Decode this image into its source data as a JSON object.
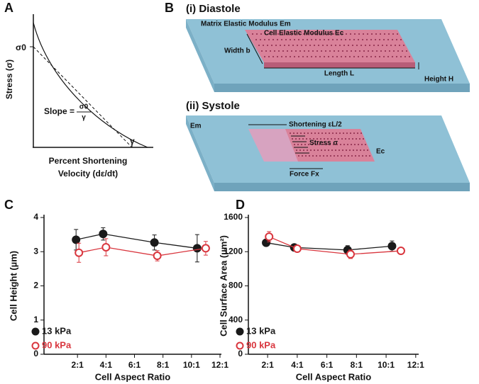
{
  "panel_a": {
    "letter": "A",
    "y_axis_label": "Stress (σ)",
    "sigma0": "σ0",
    "gamma": "γ",
    "slope_label": "Slope =",
    "slope_num": "σ0",
    "slope_den": "γ",
    "x_axis_line1": "Percent Shortening",
    "x_axis_line2": "Velocity (dε/dt)"
  },
  "panel_b": {
    "letter": "B",
    "diastole": {
      "title": "(i) Diastole",
      "matrix": "Matrix Elastic Modulus Em",
      "cell": "Cell Elastic Modulus Ec",
      "width": "Width b",
      "height": "Height H",
      "length": "Length L"
    },
    "systole": {
      "title": "(ii) Systole",
      "matrix": "Em",
      "shortening": "Shortening εL/2",
      "stress": "Stress σ",
      "cell": "Ec",
      "force": "Force Fx"
    }
  },
  "chart_data": [
    {
      "type": "line",
      "letter": "C",
      "x_label": "Cell Aspect Ratio",
      "y_label": "Cell Height (µm)",
      "xlim": [
        -0.35,
        12.1
      ],
      "xticks": [
        {
          "value": 2,
          "label": "2:1"
        },
        {
          "value": 4,
          "label": "4:1"
        },
        {
          "value": 6,
          "label": "6:1"
        },
        {
          "value": 8,
          "label": "8:1"
        },
        {
          "value": 10,
          "label": "10:1"
        },
        {
          "value": 12,
          "label": "12:1"
        }
      ],
      "ylim": [
        0,
        4
      ],
      "yticks": [
        0,
        1,
        2,
        3,
        4
      ],
      "legend": "lower left",
      "series": [
        {
          "name": "13 kPa",
          "color": "#1a1a1a",
          "marker": "filled",
          "x": [
            1.9,
            3.8,
            7.4,
            10.4
          ],
          "values": [
            3.35,
            3.52,
            3.27,
            3.1
          ],
          "errors": [
            0.3,
            0.18,
            0.22,
            0.4
          ]
        },
        {
          "name": "90 kPa",
          "color": "#d9363e",
          "marker": "open",
          "x": [
            2.1,
            4.0,
            7.6,
            11.0
          ],
          "values": [
            2.97,
            3.13,
            2.88,
            3.1
          ],
          "errors": [
            0.28,
            0.25,
            0.15,
            0.2
          ]
        }
      ]
    },
    {
      "type": "line",
      "letter": "D",
      "x_label": "Cell Aspect Ratio",
      "y_label": "Cell Surface Area (µm²)",
      "xlim": [
        0.7,
        12.2
      ],
      "xticks": [
        {
          "value": 2,
          "label": "2:1"
        },
        {
          "value": 4,
          "label": "4:1"
        },
        {
          "value": 6,
          "label": "6:1"
        },
        {
          "value": 8,
          "label": "8:1"
        },
        {
          "value": 10,
          "label": "10:1"
        },
        {
          "value": 12,
          "label": "12:1"
        }
      ],
      "ylim": [
        0,
        1600
      ],
      "yticks": [
        0,
        400,
        800,
        1200,
        1600
      ],
      "legend": "lower left",
      "series": [
        {
          "name": "13 kPa",
          "color": "#1a1a1a",
          "marker": "filled",
          "x": [
            1.9,
            3.8,
            7.4,
            10.4
          ],
          "values": [
            1305,
            1250,
            1220,
            1265
          ],
          "errors": [
            30,
            30,
            50,
            60
          ]
        },
        {
          "name": "90 kPa",
          "color": "#d9363e",
          "marker": "open",
          "x": [
            2.1,
            4.0,
            7.6,
            11.0
          ],
          "values": [
            1375,
            1235,
            1170,
            1210
          ],
          "errors": [
            60,
            30,
            50,
            30
          ]
        }
      ]
    }
  ]
}
